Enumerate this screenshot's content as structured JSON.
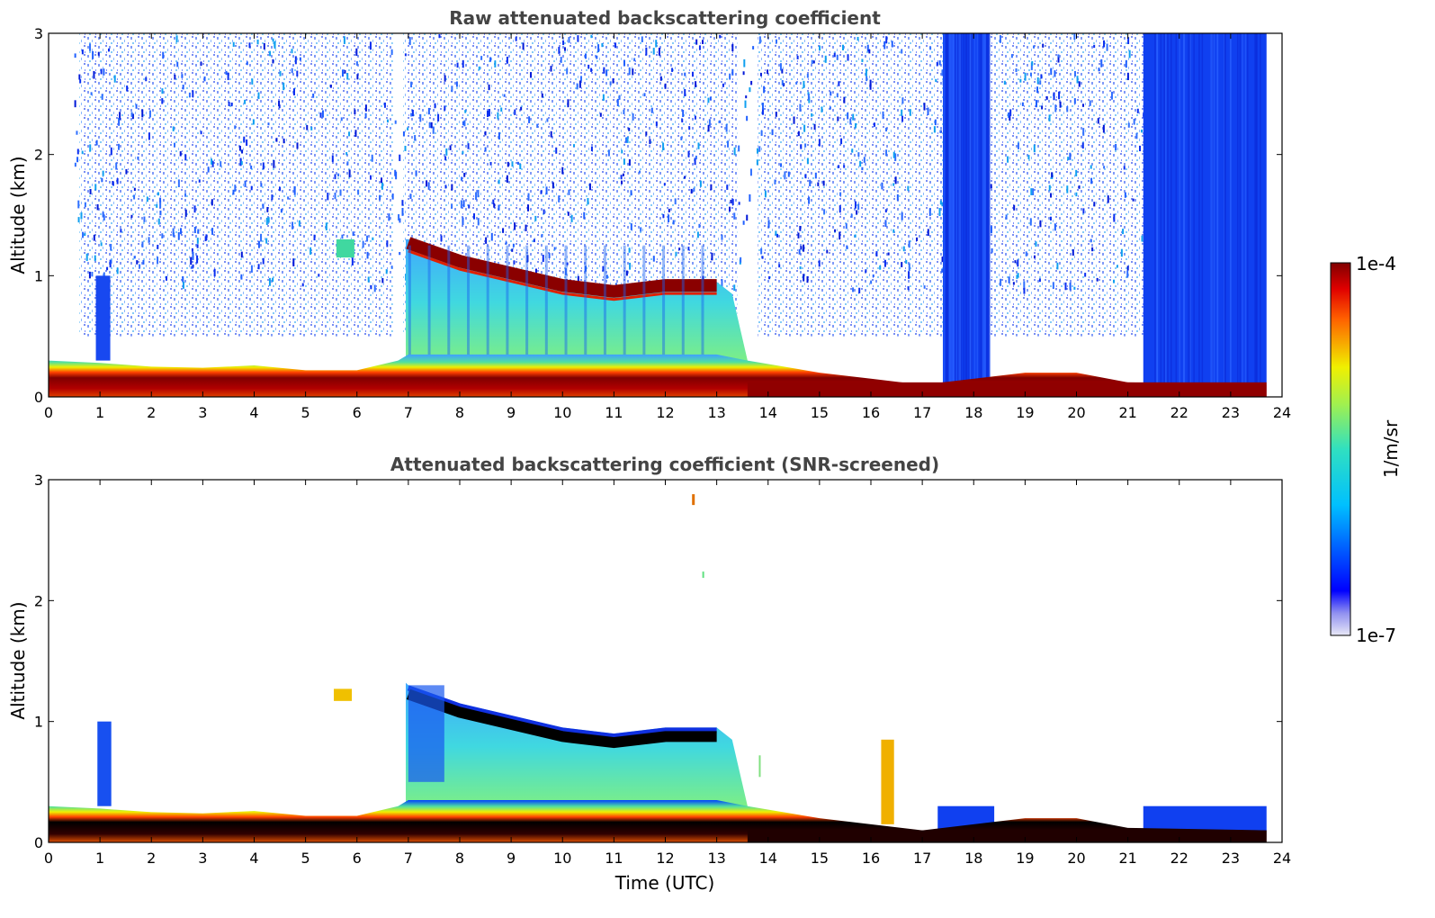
{
  "chart_data": [
    {
      "type": "heatmap",
      "title": "Raw attenuated backscattering coefficient",
      "xlabel": "",
      "ylabel": "Altitude (km)",
      "xlim": [
        0,
        24
      ],
      "ylim": [
        0,
        3
      ],
      "xticks": [
        "0",
        "1",
        "2",
        "3",
        "4",
        "5",
        "6",
        "7",
        "8",
        "9",
        "10",
        "11",
        "12",
        "13",
        "14",
        "15",
        "16",
        "17",
        "18",
        "19",
        "20",
        "21",
        "22",
        "23",
        "24"
      ],
      "yticks": [
        "0",
        "1",
        "2",
        "3"
      ],
      "data_end_hour": 23.7,
      "surface_layer_top_km": [
        {
          "x": 0,
          "y": 0.3
        },
        {
          "x": 1,
          "y": 0.28
        },
        {
          "x": 2,
          "y": 0.25
        },
        {
          "x": 3,
          "y": 0.24
        },
        {
          "x": 4,
          "y": 0.26
        },
        {
          "x": 5,
          "y": 0.22
        },
        {
          "x": 6,
          "y": 0.22
        },
        {
          "x": 6.8,
          "y": 0.3
        },
        {
          "x": 7,
          "y": 1.3
        },
        {
          "x": 8,
          "y": 1.15
        },
        {
          "x": 9,
          "y": 1.05
        },
        {
          "x": 10,
          "y": 0.95
        },
        {
          "x": 11,
          "y": 0.9
        },
        {
          "x": 12,
          "y": 0.95
        },
        {
          "x": 13,
          "y": 0.95
        },
        {
          "x": 13.6,
          "y": 0.3
        },
        {
          "x": 15,
          "y": 0.2
        },
        {
          "x": 16,
          "y": 0.15
        },
        {
          "x": 17,
          "y": 0.1
        },
        {
          "x": 19,
          "y": 0.2
        },
        {
          "x": 20,
          "y": 0.2
        },
        {
          "x": 21,
          "y": 0.12
        },
        {
          "x": 23.7,
          "y": 0.1
        }
      ],
      "high_signal_regions": [
        {
          "x_start": 17.4,
          "x_end": 18.3,
          "y_top": 3
        },
        {
          "x_start": 21.3,
          "x_end": 23.7,
          "y_top": 3
        }
      ]
    },
    {
      "type": "heatmap",
      "title": "Attenuated backscattering coefficient (SNR-screened)",
      "xlabel": "Time (UTC)",
      "ylabel": "Altitude (km)",
      "xlim": [
        0,
        24
      ],
      "ylim": [
        0,
        3
      ],
      "xticks": [
        "0",
        "1",
        "2",
        "3",
        "4",
        "5",
        "6",
        "7",
        "8",
        "9",
        "10",
        "11",
        "12",
        "13",
        "14",
        "15",
        "16",
        "17",
        "18",
        "19",
        "20",
        "21",
        "22",
        "23",
        "24"
      ],
      "yticks": [
        "0",
        "1",
        "2",
        "3"
      ],
      "data_end_hour": 23.7,
      "screened_blue_regions": [
        {
          "x_start": 17.3,
          "x_end": 18.4,
          "y_top": 0.3
        },
        {
          "x_start": 21.3,
          "x_end": 23.7,
          "y_top": 0.3
        }
      ]
    }
  ],
  "colorbar": {
    "label": "1/m/sr",
    "max_label": "1e-4",
    "min_label": "1e-7",
    "scale": "log",
    "range": [
      1e-07,
      0.0001
    ],
    "colormap": "jet"
  },
  "colors": {
    "dark_red": "#800000",
    "red": "#e00000",
    "yellow": "#e8e800",
    "green": "#70f070",
    "cyan": "#30c8e0",
    "light_blue": "#40a0ff",
    "blue": "#0040ff",
    "pale": "#dcdcf4",
    "black": "#000000"
  }
}
